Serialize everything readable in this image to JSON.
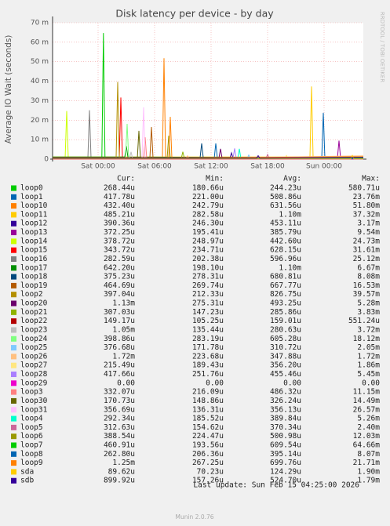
{
  "chart_data": {
    "type": "line",
    "title": "Disk latency per device - by day",
    "y_label": "Average IO Wait (seconds)",
    "watermark": "RRDTOOL / TOBI OETIKER",
    "xlim": [
      "Fri 19:10",
      "Sun 04:10"
    ],
    "xticks": [
      "Sat 00:00",
      "Sat 06:00",
      "Sat 12:00",
      "Sat 18:00",
      "Sun 00:00"
    ],
    "ylim": [
      0,
      0.07
    ],
    "yticks": [
      0,
      {
        "value": 0.01,
        "label": "10 m"
      },
      {
        "value": 0.02,
        "label": "20 m"
      },
      {
        "value": 0.03,
        "label": "30 m"
      },
      {
        "value": 0.04,
        "label": "40 m"
      },
      {
        "value": 0.05,
        "label": "50 m"
      },
      {
        "value": 0.06,
        "label": "60 m"
      },
      {
        "value": 0.07,
        "label": "70 m"
      }
    ],
    "grid": true,
    "legend_headers": [
      "Cur:",
      "Min:",
      "Avg:",
      "Max:"
    ],
    "series": [
      {
        "name": "loop0",
        "color": "#00cc00",
        "x": [
          "Fri 19:10",
          "Sat 09:50",
          "Sat 10:00",
          "Sat 10:10",
          "Sun 04:10"
        ],
        "values": [
          0.000244,
          0.000244,
          0.00058,
          0.000244,
          0.000268
        ],
        "cur": "268.44u",
        "min": "180.66u",
        "avg": "244.23u",
        "max": "580.71u"
      },
      {
        "name": "loop1",
        "color": "#0066b3",
        "x": [
          "Fri 19:10",
          "Sat 23:45",
          "Sat 23:55",
          "Sun 00:05",
          "Sun 04:10"
        ],
        "values": [
          0.000509,
          0.000509,
          0.0238,
          0.000509,
          0.000418
        ],
        "cur": "417.78u",
        "min": "221.00u",
        "avg": "508.86u",
        "max": "23.76m"
      },
      {
        "name": "loop10",
        "color": "#ff8000",
        "x": [
          "Fri 19:10",
          "Sat 06:50",
          "Sat 07:00",
          "Sat 07:10",
          "Sun 04:10"
        ],
        "values": [
          0.000632,
          0.000632,
          0.0518,
          0.000632,
          0.000432
        ],
        "cur": "432.40u",
        "min": "242.79u",
        "avg": "631.56u",
        "max": "51.80m"
      },
      {
        "name": "loop11",
        "color": "#ffcc00",
        "x": [
          "Fri 19:10",
          "Sat 22:30",
          "Sat 22:40",
          "Sat 22:50",
          "Sun 04:10"
        ],
        "values": [
          0.0011,
          0.0011,
          0.0373,
          0.0011,
          0.000485
        ],
        "cur": "485.21u",
        "min": "282.58u",
        "avg": "1.10m",
        "max": "37.32m"
      },
      {
        "name": "loop12",
        "color": "#330099",
        "x": [
          "Fri 19:10",
          "Sat 14:00",
          "Sat 14:10",
          "Sat 14:20",
          "Sun 04:10"
        ],
        "values": [
          0.000453,
          0.000453,
          0.0032,
          0.000453,
          0.00039
        ],
        "cur": "390.36u",
        "min": "246.30u",
        "avg": "453.11u",
        "max": "3.17m"
      },
      {
        "name": "loop13",
        "color": "#990099",
        "x": [
          "Fri 19:10",
          "Sun 01:25",
          "Sun 01:35",
          "Sun 01:45",
          "Sun 04:10"
        ],
        "values": [
          0.000386,
          0.000386,
          0.0095,
          0.000386,
          0.000372
        ],
        "cur": "372.25u",
        "min": "195.41u",
        "avg": "385.79u",
        "max": "9.54m"
      },
      {
        "name": "loop14",
        "color": "#ccff00",
        "x": [
          "Fri 19:10",
          "Fri 20:30",
          "Fri 20:40",
          "Fri 20:50",
          "Sun 04:10"
        ],
        "values": [
          0.000443,
          0.000443,
          0.0247,
          0.000443,
          0.000379
        ],
        "cur": "378.72u",
        "min": "248.97u",
        "avg": "442.60u",
        "max": "24.73m"
      },
      {
        "name": "loop15",
        "color": "#ff0000",
        "x": [
          "Fri 19:10",
          "Sat 02:15",
          "Sat 02:25",
          "Sat 02:35",
          "Sun 04:10"
        ],
        "values": [
          0.000628,
          0.000628,
          0.0316,
          0.000628,
          0.000344
        ],
        "cur": "343.72u",
        "min": "234.71u",
        "avg": "628.15u",
        "max": "31.61m"
      },
      {
        "name": "loop16",
        "color": "#808080",
        "x": [
          "Fri 19:10",
          "Fri 22:55",
          "Fri 23:05",
          "Fri 23:15",
          "Sun 04:10"
        ],
        "values": [
          0.000597,
          0.000597,
          0.0251,
          0.000597,
          0.000283
        ],
        "cur": "282.59u",
        "min": "202.38u",
        "avg": "596.96u",
        "max": "25.12m"
      },
      {
        "name": "loop17",
        "color": "#008f00",
        "x": [
          "Fri 19:10",
          "Sat 02:50",
          "Sat 03:00",
          "Sat 03:10",
          "Sun 04:10"
        ],
        "values": [
          0.0011,
          0.0011,
          0.0067,
          0.0011,
          0.000642
        ],
        "cur": "642.20u",
        "min": "198.10u",
        "avg": "1.10m",
        "max": "6.67m"
      },
      {
        "name": "loop18",
        "color": "#00487d",
        "x": [
          "Fri 19:10",
          "Sat 10:50",
          "Sat 11:00",
          "Sat 11:10",
          "Sun 04:10"
        ],
        "values": [
          0.000681,
          0.000681,
          0.0081,
          0.000681,
          0.000375
        ],
        "cur": "375.23u",
        "min": "278.31u",
        "avg": "680.81u",
        "max": "8.08m"
      },
      {
        "name": "loop19",
        "color": "#b35a00",
        "x": [
          "Fri 19:10",
          "Sat 05:30",
          "Sat 05:40",
          "Sat 05:50",
          "Sun 04:10"
        ],
        "values": [
          0.000668,
          0.000668,
          0.0165,
          0.000668,
          0.000465
        ],
        "cur": "464.69u",
        "min": "269.74u",
        "avg": "667.77u",
        "max": "16.53m"
      },
      {
        "name": "loop2",
        "color": "#b38f00",
        "x": [
          "Fri 19:10",
          "Sat 01:55",
          "Sat 02:05",
          "Sat 02:15",
          "Sun 04:10"
        ],
        "values": [
          0.000827,
          0.000827,
          0.0396,
          0.000827,
          0.000397
        ],
        "cur": "397.04u",
        "min": "212.33u",
        "avg": "826.75u",
        "max": "39.57m"
      },
      {
        "name": "loop20",
        "color": "#6b006b",
        "x": [
          "Fri 19:10",
          "Sat 12:50",
          "Sat 13:00",
          "Sat 13:10",
          "Sun 04:10"
        ],
        "values": [
          0.000493,
          0.000493,
          0.0053,
          0.000493,
          0.00113
        ],
        "cur": "1.13m",
        "min": "275.31u",
        "avg": "493.25u",
        "max": "5.28m"
      },
      {
        "name": "loop21",
        "color": "#8fb300",
        "x": [
          "Fri 19:10",
          "Sat 08:50",
          "Sat 09:00",
          "Sat 09:10",
          "Sun 04:10"
        ],
        "values": [
          0.000286,
          0.000286,
          0.0038,
          0.000286,
          0.000307
        ],
        "cur": "307.03u",
        "min": "147.23u",
        "avg": "285.86u",
        "max": "3.83m"
      },
      {
        "name": "loop22",
        "color": "#b30000",
        "x": [
          "Fri 19:10",
          "Sat 03:50",
          "Sat 04:00",
          "Sat 04:10",
          "Sun 04:10"
        ],
        "values": [
          0.000159,
          0.000159,
          0.00055,
          0.000159,
          0.000149
        ],
        "cur": "149.17u",
        "min": "105.25u",
        "avg": "159.01u",
        "max": "551.24u"
      },
      {
        "name": "loop23",
        "color": "#bebebe",
        "x": [
          "Fri 19:10",
          "Sat 03:20",
          "Sat 03:30",
          "Sat 03:40",
          "Sun 04:10"
        ],
        "values": [
          0.000281,
          0.000281,
          0.0037,
          0.000281,
          0.00105
        ],
        "cur": "1.05m",
        "min": "135.44u",
        "avg": "280.63u",
        "max": "3.72m"
      },
      {
        "name": "loop24",
        "color": "#80ff80",
        "x": [
          "Fri 19:10",
          "Sat 02:55",
          "Sat 03:05",
          "Sat 03:15",
          "Sun 04:10"
        ],
        "values": [
          0.000605,
          0.000605,
          0.0181,
          0.000605,
          0.000399
        ],
        "cur": "398.86u",
        "min": "283.19u",
        "avg": "605.28u",
        "max": "18.12m"
      },
      {
        "name": "loop25",
        "color": "#80c9ff",
        "x": [
          "Fri 19:10",
          "Sat 15:50",
          "Sat 16:00",
          "Sat 16:10",
          "Sun 04:10"
        ],
        "values": [
          0.000311,
          0.000311,
          0.0021,
          0.000311,
          0.000377
        ],
        "cur": "376.68u",
        "min": "171.78u",
        "avg": "310.72u",
        "max": "2.05m"
      },
      {
        "name": "loop26",
        "color": "#ffc080",
        "x": [
          "Fri 19:10",
          "Sat 09:20",
          "Sat 09:30",
          "Sat 09:40",
          "Sun 04:10"
        ],
        "values": [
          0.000348,
          0.000348,
          0.0017,
          0.000348,
          0.00172
        ],
        "cur": "1.72m",
        "min": "223.68u",
        "avg": "347.88u",
        "max": "1.72m"
      },
      {
        "name": "loop27",
        "color": "#ffe680",
        "x": [
          "Fri 19:10",
          "Sat 19:50",
          "Sat 20:00",
          "Sat 20:10",
          "Sun 04:10"
        ],
        "values": [
          0.000356,
          0.000356,
          0.0019,
          0.000356,
          0.000215
        ],
        "cur": "215.49u",
        "min": "189.43u",
        "avg": "356.20u",
        "max": "1.86m"
      },
      {
        "name": "loop28",
        "color": "#aa80ff",
        "x": [
          "Fri 19:10",
          "Sat 14:20",
          "Sat 14:30",
          "Sat 14:40",
          "Sun 04:10"
        ],
        "values": [
          0.000455,
          0.000455,
          0.0055,
          0.000455,
          0.000418
        ],
        "cur": "417.66u",
        "min": "251.76u",
        "avg": "455.46u",
        "max": "5.45m"
      },
      {
        "name": "loop29",
        "color": "#ee00cc",
        "x": [
          "Fri 19:10",
          "Sun 04:10"
        ],
        "values": [
          0,
          0
        ],
        "cur": "0.00",
        "min": "0.00",
        "avg": "0.00",
        "max": "0.00"
      },
      {
        "name": "loop3",
        "color": "#ff8080",
        "x": [
          "Fri 19:10",
          "Sat 04:50",
          "Sat 05:00",
          "Sat 05:10",
          "Sun 04:10"
        ],
        "values": [
          0.000486,
          0.000486,
          0.0112,
          0.000486,
          0.000332
        ],
        "cur": "332.07u",
        "min": "216.09u",
        "avg": "486.32u",
        "max": "11.15m"
      },
      {
        "name": "loop30",
        "color": "#666600",
        "x": [
          "Fri 19:10",
          "Sat 04:10",
          "Sat 04:20",
          "Sat 04:30",
          "Sun 04:10"
        ],
        "values": [
          0.000326,
          0.000326,
          0.0145,
          0.000326,
          0.000171
        ],
        "cur": "170.73u",
        "min": "148.86u",
        "avg": "326.24u",
        "max": "14.49m"
      },
      {
        "name": "loop31",
        "color": "#ffbfff",
        "x": [
          "Fri 19:10",
          "Sat 04:40",
          "Sat 04:50",
          "Sat 05:00",
          "Sun 04:10"
        ],
        "values": [
          0.000356,
          0.000356,
          0.0266,
          0.000356,
          0.000357
        ],
        "cur": "356.69u",
        "min": "136.31u",
        "avg": "356.13u",
        "max": "26.57m"
      },
      {
        "name": "loop4",
        "color": "#00ffcc",
        "x": [
          "Fri 19:10",
          "Sat 14:50",
          "Sat 15:00",
          "Sat 15:10",
          "Sun 04:10"
        ],
        "values": [
          0.00039,
          0.00039,
          0.0053,
          0.00039,
          0.000292
        ],
        "cur": "292.34u",
        "min": "185.52u",
        "avg": "389.84u",
        "max": "5.26m"
      },
      {
        "name": "loop5",
        "color": "#cc6699",
        "x": [
          "Fri 19:10",
          "Sat 17:50",
          "Sat 18:00",
          "Sat 18:10",
          "Sun 04:10"
        ],
        "values": [
          0.00037,
          0.00037,
          0.0024,
          0.00037,
          0.000313
        ],
        "cur": "312.63u",
        "min": "154.62u",
        "avg": "370.34u",
        "max": "2.40m"
      },
      {
        "name": "loop6",
        "color": "#999900",
        "x": [
          "Fri 19:10",
          "Sat 07:20",
          "Sat 07:30",
          "Sat 07:40",
          "Sun 04:10"
        ],
        "values": [
          0.000501,
          0.000501,
          0.012,
          0.000501,
          0.000389
        ],
        "cur": "388.54u",
        "min": "224.47u",
        "avg": "500.98u",
        "max": "12.03m"
      },
      {
        "name": "loop7",
        "color": "#00cc00",
        "x": [
          "Fri 19:10",
          "Sat 00:24",
          "Sat 00:34",
          "Sat 00:44",
          "Sun 04:10"
        ],
        "values": [
          0.00061,
          0.00061,
          0.0647,
          0.00061,
          0.000461
        ],
        "cur": "460.91u",
        "min": "193.56u",
        "avg": "609.54u",
        "max": "64.66m"
      },
      {
        "name": "loop8",
        "color": "#0066b3",
        "x": [
          "Fri 19:10",
          "Sat 12:20",
          "Sat 12:30",
          "Sat 12:40",
          "Sun 04:10"
        ],
        "values": [
          0.000395,
          0.000395,
          0.0081,
          0.000395,
          0.000263
        ],
        "cur": "262.80u",
        "min": "206.36u",
        "avg": "395.14u",
        "max": "8.07m"
      },
      {
        "name": "loop9",
        "color": "#ff8000",
        "x": [
          "Fri 19:10",
          "Sat 07:30",
          "Sat 07:40",
          "Sat 07:50",
          "Sun 04:10"
        ],
        "values": [
          0.0007,
          0.0007,
          0.0217,
          0.0007,
          0.00125
        ],
        "cur": "1.25m",
        "min": "267.25u",
        "avg": "699.76u",
        "max": "21.71m"
      },
      {
        "name": "sda",
        "color": "#ffcc00",
        "x": [
          "Fri 19:10",
          "Sun 02:50",
          "Sun 03:00",
          "Sun 03:10",
          "Sun 04:10"
        ],
        "values": [
          0.000124,
          0.000124,
          0.0019,
          0.000124,
          8.96e-05
        ],
        "cur": "89.62u",
        "min": "70.23u",
        "avg": "124.29u",
        "max": "1.90m"
      },
      {
        "name": "sdb",
        "color": "#330099",
        "x": [
          "Fri 19:10",
          "Sat 16:50",
          "Sat 17:00",
          "Sat 17:10",
          "Sun 04:10"
        ],
        "values": [
          0.000525,
          0.000525,
          0.0018,
          0.000525,
          0.0009
        ],
        "cur": "899.92u",
        "min": "157.26u",
        "avg": "524.70u",
        "max": "1.79m"
      }
    ],
    "last_update": "Last update: Sun Feb 15 04:25:00 2026",
    "footer": "Munin 2.0.76"
  }
}
